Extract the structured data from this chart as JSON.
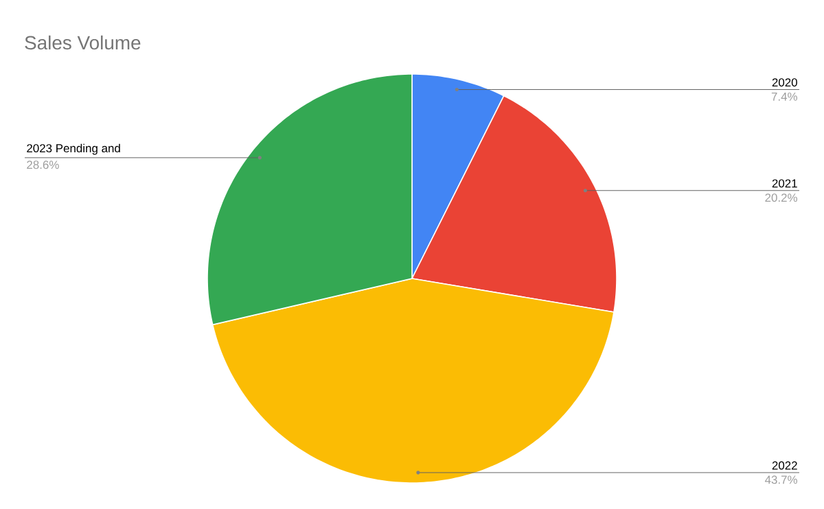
{
  "chart_data": {
    "type": "pie",
    "title": "Sales Volume",
    "categories": [
      "2020",
      "2021",
      "2022",
      "2023 Pending and"
    ],
    "values": [
      7.4,
      20.2,
      43.7,
      28.6
    ],
    "value_labels": [
      "7.4%",
      "20.2%",
      "43.7%",
      "28.6%"
    ],
    "colors": [
      "#4285f4",
      "#ea4335",
      "#fbbc04",
      "#34a853"
    ]
  }
}
